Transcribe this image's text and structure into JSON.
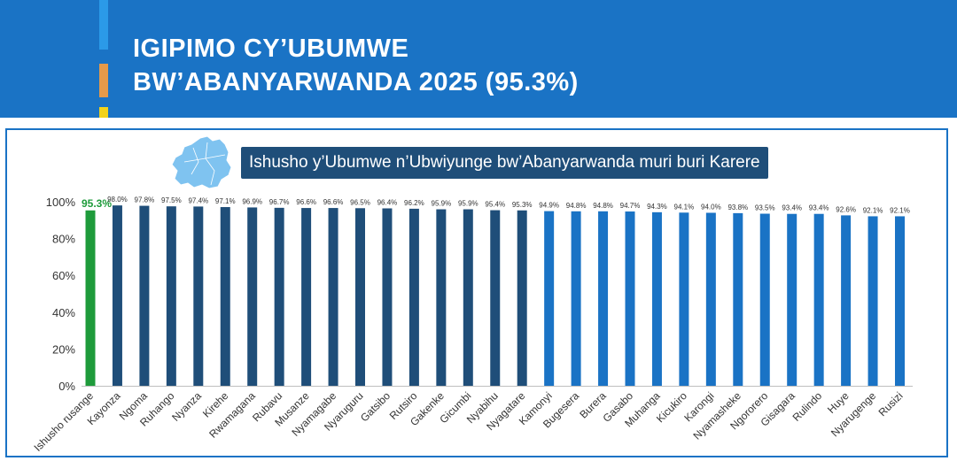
{
  "header": {
    "title_line1": "IGIPIMO CY’UBUMWE",
    "title_line2": "BW’ABANYARWANDA 2025 (95.3%)"
  },
  "colors": {
    "banner": "#1a73c5",
    "national_bar": "#1e9b3b",
    "top_districts": "#1f4e79",
    "other_districts": "#1a73c5"
  },
  "chart_data": {
    "type": "bar",
    "title": "Ishusho y’Ubumwe n’Ubwiyunge bw’Abanyarwanda muri buri Karere",
    "ylim": [
      0,
      100
    ],
    "yticks": [
      "0%",
      "20%",
      "40%",
      "60%",
      "80%",
      "100%"
    ],
    "grid": false,
    "categories": [
      "Ishusho rusange",
      "Kayonza",
      "Ngoma",
      "Ruhango",
      "Nyanza",
      "Kirehe",
      "Rwamagana",
      "Rubavu",
      "Musanze",
      "Nyamagabe",
      "Nyaruguru",
      "Gatsibo",
      "Rutsiro",
      "Gakenke",
      "Gicumbi",
      "Nyabihu",
      "Nyagatare",
      "Kamonyi",
      "Bugesera",
      "Burera",
      "Gasabo",
      "Muhanga",
      "Kicukiro",
      "Karongi",
      "Nyamasheke",
      "Ngororero",
      "Gisagara",
      "Rulindo",
      "Huye",
      "Nyarugenge",
      "Rusizi"
    ],
    "values": [
      95.3,
      98.0,
      97.8,
      97.5,
      97.4,
      97.1,
      96.9,
      96.7,
      96.6,
      96.6,
      96.5,
      96.4,
      96.2,
      95.9,
      95.9,
      95.4,
      95.3,
      94.9,
      94.8,
      94.8,
      94.7,
      94.3,
      94.1,
      94.0,
      93.8,
      93.5,
      93.4,
      93.4,
      92.6,
      92.1,
      92.1
    ],
    "labels": [
      "95.3%",
      "98.0%",
      "97.8%",
      "97.5%",
      "97.4%",
      "97.1%",
      "96.9%",
      "96.7%",
      "96.6%",
      "96.6%",
      "96.5%",
      "96.4%",
      "96.2%",
      "95.9%",
      "95.9%",
      "95.4%",
      "95.3%",
      "94.9%",
      "94.8%",
      "94.8%",
      "94.7%",
      "94.3%",
      "94.1%",
      "94.0%",
      "93.8%",
      "93.5%",
      "93.4%",
      "93.4%",
      "92.6%",
      "92.1%",
      "92.1%"
    ],
    "color_groups": [
      "national",
      "top",
      "top",
      "top",
      "top",
      "top",
      "top",
      "top",
      "top",
      "top",
      "top",
      "top",
      "top",
      "top",
      "top",
      "top",
      "top",
      "other",
      "other",
      "other",
      "other",
      "other",
      "other",
      "other",
      "other",
      "other",
      "other",
      "other",
      "other",
      "other",
      "other"
    ]
  }
}
